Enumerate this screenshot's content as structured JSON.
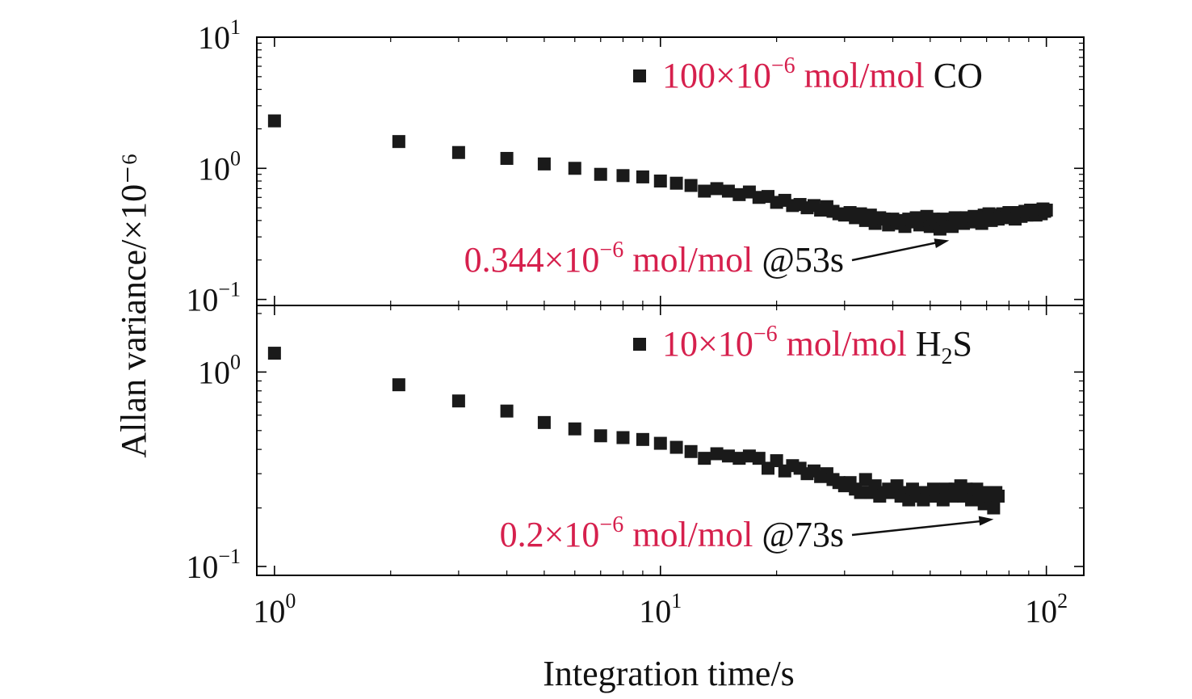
{
  "chart_data": [
    {
      "type": "scatter",
      "xscale": "log",
      "yscale": "log",
      "xlim": [
        0.9,
        125
      ],
      "ylim": [
        0.09,
        10
      ],
      "xlabel": "Integration time/s",
      "ylabel": "Allan variance/×10⁻⁶",
      "x_ticks": [
        "10⁰",
        "10¹",
        "10²"
      ],
      "y_ticks": [
        "10⁻¹",
        "10⁰",
        "10¹"
      ],
      "marker_color": "#1a1a1a",
      "legend": {
        "placement": "top-right",
        "prefix": "100×10",
        "exponent": "−6",
        "unit": " mol/mol ",
        "species": "CO",
        "species_sub": ""
      },
      "annotation": {
        "value_prefix": "0.344×10",
        "value_exp": "−6",
        "unit": " mol/mol ",
        "at": "@53s",
        "x": 56,
        "y": 0.344
      },
      "series": [
        {
          "x": [
            1,
            2.1,
            3,
            4,
            5,
            6,
            7,
            8,
            9,
            10,
            11,
            12,
            13,
            14,
            15,
            16,
            17,
            18,
            19,
            20,
            21,
            22,
            23,
            24,
            25,
            26,
            27,
            28,
            29,
            30,
            31,
            32,
            33,
            34,
            35,
            36,
            37,
            38,
            39,
            40,
            41,
            42,
            43,
            44,
            45,
            46,
            47,
            48,
            49,
            50,
            51,
            52,
            53,
            54,
            55,
            56,
            57,
            58,
            59,
            60,
            61,
            62,
            63,
            64,
            65,
            66,
            67,
            68,
            69,
            70,
            71,
            72,
            73,
            74,
            75,
            76,
            77,
            78,
            79,
            80,
            81,
            82,
            83,
            84,
            85,
            86,
            87,
            88,
            89,
            90,
            91,
            92,
            93,
            94,
            95,
            96,
            97,
            98,
            99,
            100
          ],
          "y": [
            2.3,
            1.6,
            1.32,
            1.19,
            1.08,
            1.0,
            0.9,
            0.88,
            0.86,
            0.8,
            0.77,
            0.74,
            0.67,
            0.7,
            0.67,
            0.63,
            0.66,
            0.6,
            0.61,
            0.55,
            0.57,
            0.52,
            0.53,
            0.5,
            0.52,
            0.48,
            0.51,
            0.47,
            0.45,
            0.44,
            0.46,
            0.42,
            0.45,
            0.4,
            0.44,
            0.38,
            0.42,
            0.41,
            0.37,
            0.41,
            0.38,
            0.4,
            0.36,
            0.41,
            0.39,
            0.42,
            0.37,
            0.4,
            0.43,
            0.36,
            0.41,
            0.38,
            0.344,
            0.41,
            0.37,
            0.4,
            0.36,
            0.42,
            0.39,
            0.4,
            0.38,
            0.42,
            0.41,
            0.39,
            0.43,
            0.4,
            0.41,
            0.38,
            0.44,
            0.42,
            0.45,
            0.4,
            0.42,
            0.44,
            0.41,
            0.43,
            0.45,
            0.42,
            0.44,
            0.46,
            0.43,
            0.45,
            0.41,
            0.44,
            0.46,
            0.43,
            0.45,
            0.47,
            0.44,
            0.46,
            0.48,
            0.45,
            0.47,
            0.44,
            0.48,
            0.46,
            0.45,
            0.49,
            0.47,
            0.48
          ]
        }
      ]
    },
    {
      "type": "scatter",
      "xscale": "log",
      "yscale": "log",
      "xlim": [
        0.9,
        125
      ],
      "ylim": [
        0.09,
        2.2
      ],
      "xlabel": "Integration time/s",
      "ylabel": "Allan variance/×10⁻⁶",
      "x_ticks": [
        "10⁰",
        "10¹",
        "10²"
      ],
      "y_ticks": [
        "10⁻¹",
        "10⁰"
      ],
      "marker_color": "#1a1a1a",
      "legend": {
        "placement": "top-right",
        "prefix": "10×10",
        "exponent": "−6",
        "unit": " mol/mol ",
        "species": "H",
        "species_sub": "2",
        "species_tail": "S"
      },
      "annotation": {
        "value_prefix": "0.2×10",
        "value_exp": "−6",
        "unit": " mol/mol ",
        "at": "@73s",
        "x": 73,
        "y": 0.2
      },
      "series": [
        {
          "x": [
            1,
            2.1,
            3,
            4,
            5,
            6,
            7,
            8,
            9,
            10,
            11,
            12,
            13,
            14,
            15,
            16,
            17,
            18,
            19,
            20,
            21,
            22,
            23,
            24,
            25,
            26,
            27,
            28,
            29,
            30,
            31,
            32,
            33,
            34,
            35,
            36,
            37,
            38,
            39,
            40,
            41,
            42,
            43,
            44,
            45,
            46,
            47,
            48,
            49,
            50,
            51,
            52,
            53,
            54,
            55,
            56,
            57,
            58,
            59,
            60,
            61,
            62,
            63,
            64,
            65,
            66,
            67,
            68,
            69,
            70,
            71,
            72,
            73,
            74,
            75
          ],
          "y": [
            1.25,
            0.86,
            0.71,
            0.63,
            0.55,
            0.51,
            0.47,
            0.46,
            0.45,
            0.43,
            0.41,
            0.39,
            0.36,
            0.38,
            0.37,
            0.36,
            0.37,
            0.36,
            0.32,
            0.35,
            0.31,
            0.33,
            0.32,
            0.3,
            0.31,
            0.29,
            0.3,
            0.28,
            0.27,
            0.26,
            0.27,
            0.25,
            0.24,
            0.28,
            0.24,
            0.26,
            0.23,
            0.24,
            0.25,
            0.24,
            0.26,
            0.23,
            0.24,
            0.22,
            0.25,
            0.23,
            0.24,
            0.22,
            0.24,
            0.23,
            0.25,
            0.23,
            0.24,
            0.22,
            0.25,
            0.24,
            0.23,
            0.25,
            0.24,
            0.26,
            0.23,
            0.25,
            0.24,
            0.22,
            0.24,
            0.25,
            0.23,
            0.24,
            0.21,
            0.24,
            0.23,
            0.22,
            0.2,
            0.24,
            0.23
          ]
        }
      ]
    }
  ]
}
